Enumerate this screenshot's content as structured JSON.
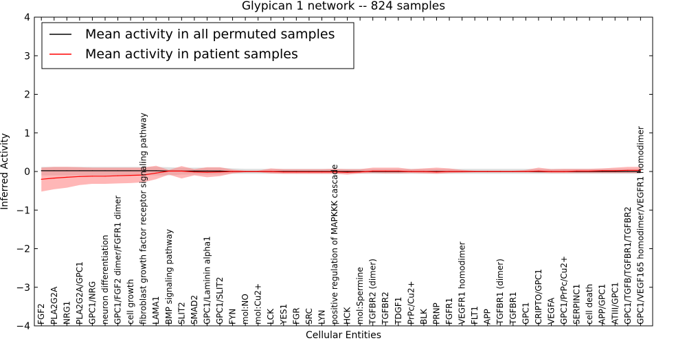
{
  "chart_data": {
    "type": "line",
    "title": "Glypican 1 network -- 824 samples",
    "xlabel": "Cellular Entities",
    "ylabel": "Inferred Activity",
    "ylim": [
      -4,
      4
    ],
    "yticks": [
      "−4",
      "−3",
      "−2",
      "−1",
      "0",
      "1",
      "2",
      "3",
      "4"
    ],
    "grid": false,
    "legend_position": "top-left",
    "categories": [
      "FGF2",
      "PLA2G2A",
      "NRG1",
      "PLA2G2A/GPC1",
      "GPC1/NRG",
      "neuron differentiation",
      "GPC1/FGF2 dimer/FGFR1 dimer",
      "cell growth",
      "fibroblast growth factor receptor signaling pathway",
      "LAMA1",
      "BMP signaling pathway",
      "SLIT2",
      "SMAD2",
      "GPC1/Laminin alpha1",
      "GPC1/SLIT2",
      "FYN",
      "mol:NO",
      "mol:Cu2+",
      "LCK",
      "YES1",
      "FGR",
      "SRC",
      "LYN",
      "positive regulation of MAPKKK cascade",
      "HCK",
      "mol:Spermine",
      "TGFBR2 (dimer)",
      "TGFBR2",
      "TDGF1",
      "PrPc/Cu2+",
      "BLK",
      "PRNP",
      "FGFR1",
      "VEGFR1 homodimer",
      "FLT1",
      "APP",
      "TGFBR1 (dimer)",
      "TGFBR1",
      "GPC1",
      "CRIPTO/GPC1",
      "VEGFA",
      "GPC1/PrPc/Cu2+",
      "SERPINC1",
      "cell death",
      "APP/GPC1",
      "ATIII/GPC1",
      "GPC1/TGFB/TGFBR1/TGFBR2",
      "GPC1/VEGF165 homodimer/VEGFR1 homodimer"
    ],
    "series": [
      {
        "name": "Mean activity in all permuted samples",
        "color": "#000000",
        "values": [
          0.02,
          0.02,
          0.02,
          0.02,
          0.02,
          0.02,
          0.02,
          0.02,
          0.02,
          0.02,
          0.01,
          0.01,
          0.01,
          0.01,
          0.01,
          0.0,
          0.0,
          0.0,
          0.0,
          0.0,
          0.0,
          0.0,
          0.0,
          0.0,
          0.0,
          0.0,
          0.0,
          0.0,
          0.0,
          0.0,
          0.0,
          0.0,
          0.0,
          0.0,
          0.0,
          0.0,
          0.0,
          0.0,
          0.0,
          0.0,
          0.0,
          0.0,
          0.0,
          0.0,
          0.0,
          0.0,
          0.0,
          0.0
        ],
        "lower": [
          -0.1,
          -0.1,
          -0.1,
          -0.1,
          -0.1,
          -0.1,
          -0.1,
          -0.1,
          -0.1,
          -0.1,
          -0.1,
          -0.08,
          -0.08,
          -0.08,
          -0.08,
          -0.06,
          -0.06,
          -0.06,
          -0.06,
          -0.06,
          -0.06,
          -0.06,
          -0.06,
          -0.06,
          -0.06,
          -0.06,
          -0.06,
          -0.06,
          -0.06,
          -0.06,
          -0.06,
          -0.06,
          -0.06,
          -0.06,
          -0.06,
          -0.06,
          -0.06,
          -0.06,
          -0.06,
          -0.06,
          -0.06,
          -0.06,
          -0.06,
          -0.06,
          -0.06,
          -0.06,
          -0.06,
          -0.06
        ],
        "upper": [
          0.12,
          0.12,
          0.12,
          0.12,
          0.12,
          0.12,
          0.12,
          0.12,
          0.12,
          0.12,
          0.11,
          0.1,
          0.1,
          0.1,
          0.1,
          0.08,
          0.07,
          0.07,
          0.07,
          0.07,
          0.07,
          0.07,
          0.07,
          0.07,
          0.07,
          0.07,
          0.07,
          0.07,
          0.07,
          0.07,
          0.07,
          0.07,
          0.07,
          0.07,
          0.07,
          0.07,
          0.07,
          0.07,
          0.07,
          0.07,
          0.07,
          0.07,
          0.07,
          0.07,
          0.07,
          0.07,
          0.07,
          0.07
        ]
      },
      {
        "name": "Mean activity in patient samples",
        "color": "#ff0000",
        "values": [
          -0.2,
          -0.17,
          -0.15,
          -0.13,
          -0.12,
          -0.12,
          -0.11,
          -0.1,
          -0.09,
          -0.04,
          0.01,
          0.01,
          -0.01,
          -0.02,
          -0.01,
          0.0,
          0.0,
          0.0,
          0.0,
          -0.01,
          -0.01,
          -0.01,
          -0.01,
          -0.01,
          -0.02,
          -0.01,
          0.01,
          0.01,
          0.01,
          0.0,
          0.0,
          -0.01,
          0.0,
          0.0,
          0.0,
          0.0,
          0.0,
          0.0,
          0.0,
          0.01,
          0.0,
          0.0,
          0.01,
          0.01,
          0.02,
          0.02,
          0.03,
          0.03
        ],
        "lower": [
          -0.52,
          -0.46,
          -0.42,
          -0.35,
          -0.32,
          -0.32,
          -0.31,
          -0.3,
          -0.28,
          -0.2,
          -0.08,
          -0.18,
          -0.1,
          -0.15,
          -0.12,
          -0.05,
          -0.02,
          -0.02,
          -0.05,
          -0.06,
          -0.06,
          -0.06,
          -0.06,
          -0.06,
          -0.08,
          -0.05,
          -0.04,
          -0.05,
          -0.05,
          -0.04,
          -0.05,
          -0.06,
          -0.04,
          -0.03,
          -0.02,
          -0.02,
          -0.02,
          -0.02,
          -0.02,
          -0.03,
          -0.04,
          -0.04,
          -0.04,
          -0.04,
          -0.04,
          -0.04,
          -0.04,
          -0.04
        ],
        "upper": [
          0.1,
          0.12,
          0.12,
          0.11,
          0.1,
          0.1,
          0.1,
          0.1,
          0.1,
          0.15,
          0.04,
          0.14,
          0.06,
          0.11,
          0.11,
          0.05,
          0.02,
          0.02,
          0.08,
          0.06,
          0.06,
          0.06,
          0.06,
          0.07,
          0.06,
          0.06,
          0.1,
          0.1,
          0.1,
          0.06,
          0.08,
          0.1,
          0.08,
          0.04,
          0.02,
          0.02,
          0.02,
          0.02,
          0.04,
          0.1,
          0.06,
          0.07,
          0.07,
          0.07,
          0.08,
          0.1,
          0.12,
          0.12
        ]
      }
    ]
  }
}
